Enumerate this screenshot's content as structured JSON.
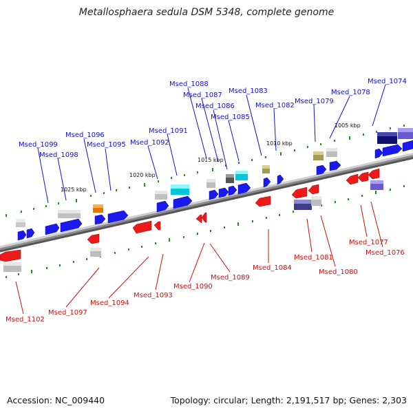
{
  "title": "Metallosphaera sedula DSM 5348, complete genome",
  "footer": {
    "accession": "Accession: NC_009440",
    "topology": "Topology: circular; Length: 2,191,517 bp; Genes: 2,303"
  },
  "scale_labels": [
    "1025 kbp",
    "1020 kbp",
    "1015 kbp",
    "1010 kbp",
    "1005 kbp"
  ],
  "genes_top": [
    "Msed_1099",
    "Msed_1098",
    "Msed_1096",
    "Msed_1095",
    "Msed_1092",
    "Msed_1091",
    "Msed_1088",
    "Msed_1087",
    "Msed_1086",
    "Msed_1085",
    "Msed_1083",
    "Msed_1082",
    "Msed_1079",
    "Msed_1078",
    "Msed_1074"
  ],
  "genes_bottom": [
    "Msed_1102",
    "Msed_1097",
    "Msed_1094",
    "Msed_1093",
    "Msed_1090",
    "Msed_1089",
    "Msed_1084",
    "Msed_1081",
    "Msed_1080",
    "Msed_1077",
    "Msed_1076"
  ],
  "colors": {
    "forward_label": "#1010cc",
    "reverse_label": "#cc1010",
    "forward_gene": "#1a1aee",
    "reverse_gene": "#ee1a1a",
    "backbone": "#888888",
    "tick": "#2a8a2a"
  }
}
